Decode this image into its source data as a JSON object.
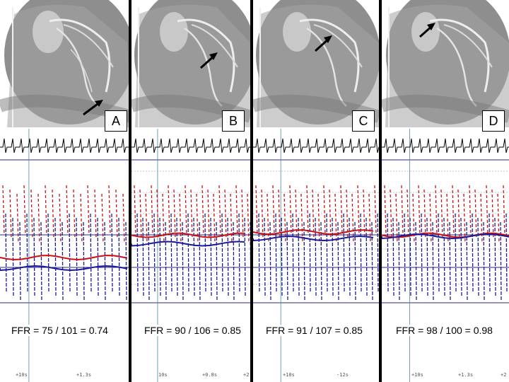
{
  "panels": [
    {
      "label": "A",
      "ffr": "FFR = 75 / 101 = 0.74",
      "ticks": [
        "+10s",
        "+1.3s"
      ],
      "red_mean": 0.68,
      "blue_mean": 0.78,
      "dense": false
    },
    {
      "label": "B",
      "ffr": "FFR = 90 / 106 = 0.85",
      "ticks": [
        "10s",
        "+0.8s",
        "+2"
      ],
      "red_mean": 0.47,
      "blue_mean": 0.55,
      "dense": true
    },
    {
      "label": "C",
      "ffr": "FFR = 91 / 107 = 0.85",
      "ticks": [
        "+10s",
        "-12s"
      ],
      "red_mean": 0.44,
      "blue_mean": 0.5,
      "dense": true
    },
    {
      "label": "D",
      "ffr": "FFR = 98 / 100 = 0.98",
      "ticks": [
        "+10s",
        "+1.3s",
        "+2"
      ],
      "red_mean": 0.47,
      "blue_mean": 0.48,
      "dense": true
    }
  ],
  "colors": {
    "aortic": "#cc1111",
    "distal": "#1a1a9a",
    "grid": "#2a2a8a"
  }
}
